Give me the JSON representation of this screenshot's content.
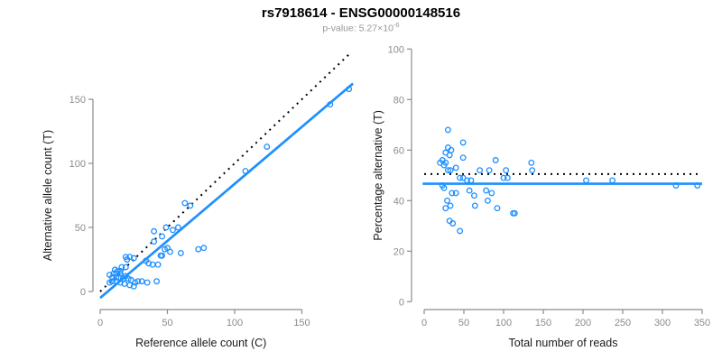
{
  "header": {
    "title": "rs7918614 - ENSG00000148516",
    "subtitle_label": "p-value: ",
    "subtitle_mantissa": "5.27",
    "subtitle_times": "×10",
    "subtitle_exponent": "-6"
  },
  "colors": {
    "accent_blue": "#1E90FF",
    "dotted_line": "#000000",
    "axis": "#8c8c8c",
    "tick_label": "#8c8c8c",
    "axis_label": "#1a1a1a",
    "subtitle": "#979797"
  },
  "chart_data": [
    {
      "id": "allele-counts",
      "type": "scatter",
      "xlabel": "Reference allele count (C)",
      "ylabel": "Alternative allele count (T)",
      "xticks": [
        0,
        50,
        100,
        150
      ],
      "yticks": [
        0,
        50,
        100,
        150
      ],
      "xlim": [
        0,
        188
      ],
      "ylim": [
        0,
        188
      ],
      "grid": false,
      "legend": "none",
      "points": [
        [
          185,
          158
        ],
        [
          171,
          146
        ],
        [
          124,
          113
        ],
        [
          108,
          94
        ],
        [
          63,
          69
        ],
        [
          67,
          67
        ],
        [
          58,
          50
        ],
        [
          49,
          50
        ],
        [
          54,
          48
        ],
        [
          40,
          47
        ],
        [
          46,
          43
        ],
        [
          40,
          39
        ],
        [
          73,
          33
        ],
        [
          77,
          34
        ],
        [
          48,
          33
        ],
        [
          60,
          30
        ],
        [
          45,
          28
        ],
        [
          50,
          34
        ],
        [
          52,
          31
        ],
        [
          46,
          28
        ],
        [
          34,
          24
        ],
        [
          36,
          22
        ],
        [
          39,
          21
        ],
        [
          43,
          21
        ],
        [
          19,
          27
        ],
        [
          22,
          27
        ],
        [
          25,
          26
        ],
        [
          20,
          25
        ],
        [
          16,
          19
        ],
        [
          19,
          19
        ],
        [
          11,
          17
        ],
        [
          13,
          16
        ],
        [
          15,
          16
        ],
        [
          15,
          14
        ],
        [
          10,
          14
        ],
        [
          12,
          14
        ],
        [
          7,
          13
        ],
        [
          9,
          11
        ],
        [
          12,
          11
        ],
        [
          14,
          11
        ],
        [
          17,
          10
        ],
        [
          19,
          12
        ],
        [
          21,
          10
        ],
        [
          23,
          9
        ],
        [
          26,
          7
        ],
        [
          35,
          7
        ],
        [
          28,
          8
        ],
        [
          31,
          8
        ],
        [
          42,
          8
        ],
        [
          9,
          8
        ],
        [
          12,
          8
        ],
        [
          15,
          7
        ],
        [
          18,
          6
        ],
        [
          22,
          5
        ],
        [
          25,
          4
        ],
        [
          7,
          7
        ]
      ],
      "lines": [
        {
          "name": "identity-dotted-line",
          "style": "dotted",
          "color": "#000000",
          "from": [
            0,
            0
          ],
          "to": [
            187,
            187
          ]
        },
        {
          "name": "fit-line",
          "style": "solid",
          "color": "#1E90FF",
          "from": [
            0,
            -5
          ],
          "to": [
            188,
            162.3
          ]
        }
      ]
    },
    {
      "id": "percentage-vs-reads",
      "type": "scatter",
      "xlabel": "Total number of reads",
      "ylabel": "Percentage alternative (T)",
      "xticks": [
        0,
        50,
        100,
        150,
        200,
        250,
        300,
        350
      ],
      "yticks": [
        0,
        20,
        40,
        60,
        80,
        100
      ],
      "xlim": [
        0,
        350
      ],
      "ylim": [
        0,
        100
      ],
      "grid": false,
      "legend": "none",
      "points": [
        [
          30,
          68
        ],
        [
          49,
          63
        ],
        [
          30,
          61
        ],
        [
          34,
          60
        ],
        [
          27,
          59
        ],
        [
          32,
          58
        ],
        [
          49,
          57
        ],
        [
          23,
          56
        ],
        [
          27,
          55
        ],
        [
          20,
          55
        ],
        [
          25,
          54
        ],
        [
          40,
          53
        ],
        [
          30,
          52
        ],
        [
          33,
          52
        ],
        [
          90,
          56
        ],
        [
          135,
          55
        ],
        [
          136,
          52
        ],
        [
          70,
          52
        ],
        [
          82,
          52
        ],
        [
          103,
          52
        ],
        [
          100,
          49
        ],
        [
          105,
          49
        ],
        [
          45,
          49
        ],
        [
          49,
          49
        ],
        [
          54,
          48
        ],
        [
          59,
          48
        ],
        [
          23,
          46
        ],
        [
          25,
          45
        ],
        [
          35,
          43
        ],
        [
          40,
          43
        ],
        [
          57,
          44
        ],
        [
          63,
          42
        ],
        [
          78,
          44
        ],
        [
          85,
          43
        ],
        [
          80,
          40
        ],
        [
          29,
          40
        ],
        [
          64,
          38
        ],
        [
          27,
          37
        ],
        [
          33,
          38
        ],
        [
          92,
          37
        ],
        [
          112,
          35
        ],
        [
          114,
          35
        ],
        [
          32,
          32
        ],
        [
          36,
          31
        ],
        [
          45,
          28
        ],
        [
          204,
          48
        ],
        [
          237,
          48
        ],
        [
          317,
          46
        ],
        [
          344,
          46
        ]
      ],
      "lines": [
        {
          "name": "expected-50pct-dotted-line",
          "style": "dotted",
          "color": "#000000",
          "from": [
            0,
            50.5
          ],
          "to": [
            345,
            50.5
          ]
        },
        {
          "name": "fit-line",
          "style": "solid",
          "color": "#1E90FF",
          "from": [
            -2,
            46.7
          ],
          "to": [
            350,
            46.7
          ]
        }
      ]
    }
  ]
}
